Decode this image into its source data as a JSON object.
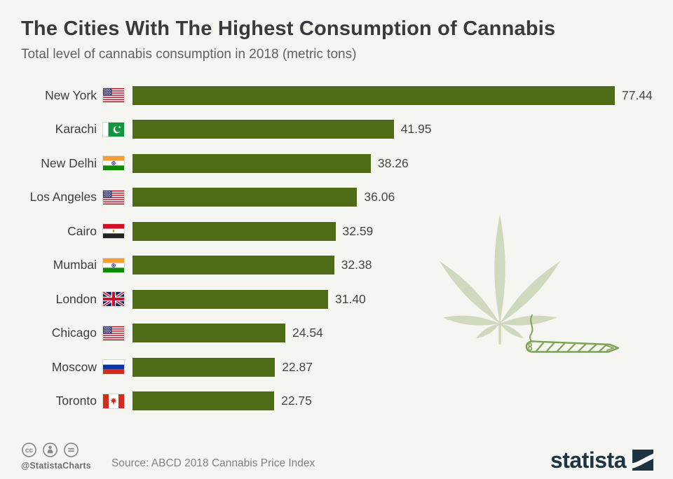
{
  "header": {
    "title": "The Cities With The Highest Consumption of Cannabis",
    "subtitle": "Total level of cannabis consumption in 2018 (metric tons)"
  },
  "chart_data": {
    "type": "bar",
    "orientation": "horizontal",
    "title": "The Cities With The Highest Consumption of Cannabis",
    "subtitle": "Total level of cannabis consumption in 2018 (metric tons)",
    "unit": "metric tons",
    "year": "2018",
    "xlim": [
      0,
      77.44
    ],
    "grid": false,
    "legend": false,
    "bar_color": "#4d6c15",
    "categories": [
      "New York",
      "Karachi",
      "New Delhi",
      "Los Angeles",
      "Cairo",
      "Mumbai",
      "London",
      "Chicago",
      "Moscow",
      "Toronto"
    ],
    "values": [
      77.44,
      41.95,
      38.26,
      36.06,
      32.59,
      32.38,
      31.4,
      24.54,
      22.87,
      22.75
    ],
    "value_labels": [
      "77.44",
      "41.95",
      "38.26",
      "36.06",
      "32.59",
      "32.38",
      "31.40",
      "24.54",
      "22.87",
      "22.75"
    ],
    "flags": [
      "us",
      "pk",
      "in",
      "us",
      "eg",
      "in",
      "gb",
      "us",
      "ru",
      "ca"
    ],
    "flag_names": [
      "united-states",
      "pakistan",
      "india",
      "united-states",
      "egypt",
      "india",
      "united-kingdom",
      "united-states",
      "russia",
      "canada"
    ]
  },
  "watermark": {
    "leaf_color": "#cfd9bd",
    "joint_color": "#7da450"
  },
  "footer": {
    "handle": "@StatistaCharts",
    "source": "Source: ABCD 2018 Cannabis Price Index",
    "license_icons": [
      "cc",
      "by",
      "nd"
    ],
    "brand": "statista"
  }
}
